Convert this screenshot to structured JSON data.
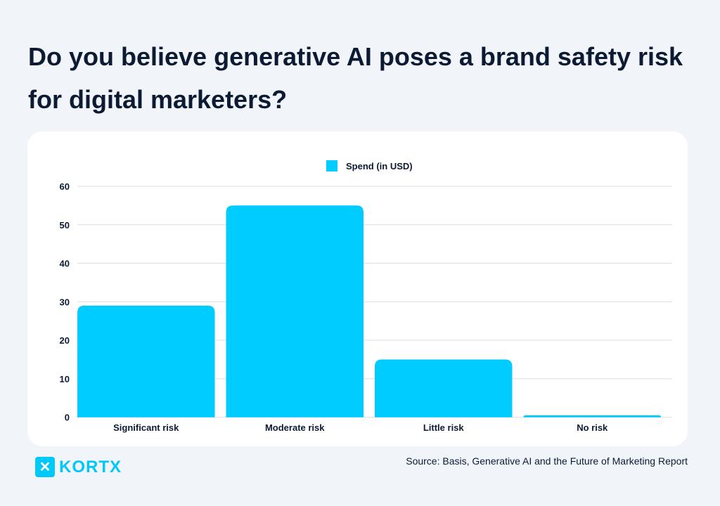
{
  "title": "Do you believe generative AI poses a brand safety risk for digital marketers?",
  "source": "Source: Basis, Generative AI and the Future of Marketing Report",
  "logo": "KORTX",
  "colors": {
    "bar": "#00ccff",
    "text": "#0c1b33",
    "background": "#f1f5f9",
    "grid": "#d9dde3"
  },
  "chart_data": {
    "type": "bar",
    "categories": [
      "Significant risk",
      "Moderate risk",
      "Little risk",
      "No risk"
    ],
    "series": [
      {
        "name": "Spend (in USD)",
        "values": [
          29,
          55,
          15,
          0.5
        ]
      }
    ],
    "ylim": [
      0,
      60
    ],
    "yticks": [
      "0",
      "10",
      "20",
      "30",
      "40",
      "50",
      "60"
    ],
    "grid": true,
    "legend": "top-center"
  }
}
